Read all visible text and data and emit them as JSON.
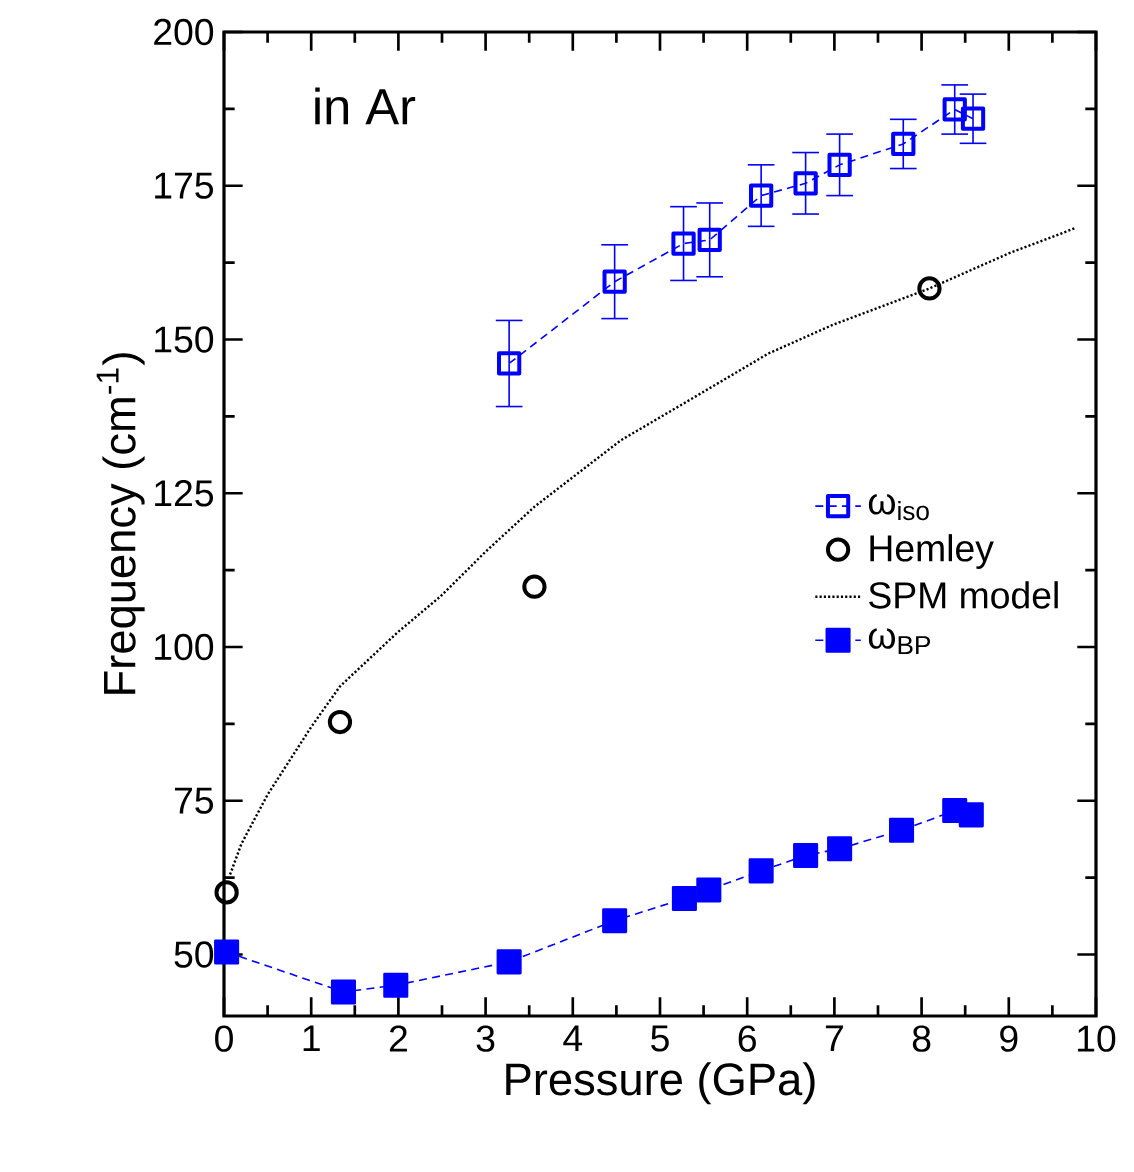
{
  "chart_data": {
    "type": "line",
    "xlabel": "Pressure (GPa)",
    "ylabel": "Frequency (cm$^{-1}$)",
    "annotations": [
      "in Ar"
    ],
    "xlim": [
      0,
      10
    ],
    "ylim": [
      40,
      200
    ],
    "xticks": [
      0,
      1,
      2,
      3,
      4,
      5,
      6,
      7,
      8,
      9,
      10
    ],
    "yticks": [
      50,
      75,
      100,
      125,
      150,
      175,
      200
    ],
    "legend": "right",
    "grid": false,
    "series": [
      {
        "name": "ω$_{iso}$",
        "color": "#0000ff",
        "marker": "square",
        "line_style": "dashed",
        "x": [
          3.27,
          4.48,
          5.27,
          5.57,
          6.16,
          6.67,
          7.06,
          7.79,
          8.38,
          8.59
        ],
        "values": [
          146.1,
          159.4,
          165.6,
          166.2,
          173.4,
          175.4,
          178.4,
          181.8,
          187.4,
          185.9
        ],
        "errors": [
          7,
          6,
          6,
          6,
          5,
          5,
          5,
          4,
          4,
          4
        ]
      },
      {
        "name": "Hemley",
        "type": "scatter",
        "color": "#000000",
        "marker": "circle",
        "x": [
          0.03,
          1.33,
          3.56,
          8.09
        ],
        "values": [
          60.1,
          87.8,
          109.8,
          158.3
        ]
      },
      {
        "name": "SPM model",
        "color": "#000000",
        "marker": "none",
        "line_style": "dotted",
        "x": [
          0.07,
          0.2,
          0.5,
          1.0,
          1.33,
          2.0,
          2.48,
          3.0,
          3.56,
          4.55,
          5.5,
          6.24,
          7.0,
          8.09,
          9.0,
          9.76
        ],
        "values": [
          63,
          68,
          76,
          87,
          93.6,
          102.5,
          108.2,
          115.5,
          122.8,
          133.6,
          141.5,
          147.7,
          152.5,
          158.3,
          164,
          168.1
        ]
      },
      {
        "name": "ω$_{BP}$",
        "color": "#0000ff",
        "marker": "square",
        "line_style": "dashed",
        "x": [
          0.03,
          1.37,
          1.97,
          3.27,
          4.48,
          5.28,
          5.56,
          6.16,
          6.67,
          7.06,
          7.77,
          8.38,
          8.57
        ],
        "values": [
          50.4,
          43.9,
          45.0,
          48.8,
          55.5,
          59.1,
          60.5,
          63.6,
          66.1,
          67.2,
          70.2,
          73.4,
          72.7
        ]
      }
    ]
  }
}
